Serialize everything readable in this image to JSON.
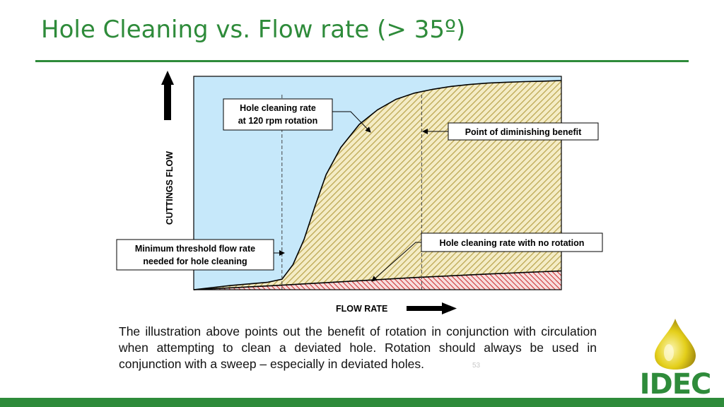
{
  "slide": {
    "title": "Hole Cleaning vs. Flow rate (> 35º)",
    "caption": "The illustration above points out the benefit of rotation in conjunction with circulation when attempting to clean a deviated hole. Rotation should always be used in conjunction with a sweep – especially in deviated holes.",
    "page_number": "53",
    "logo_text": "IDEC"
  },
  "chart_data": {
    "type": "area",
    "title": "",
    "xlabel": "FLOW RATE",
    "ylabel": "CUTTINGS FLOW",
    "xlim": [
      0,
      100
    ],
    "ylim": [
      0,
      100
    ],
    "ticks": "none",
    "grid": false,
    "colors": {
      "plot_background": "#c6e8fa",
      "rotation_fill_hatch": "#b8a24a",
      "rotation_fill_base": "#f4ecc6",
      "no_rotation_fill_hatch": "#cc2b2b",
      "axis_arrow": "#000000"
    },
    "series": [
      {
        "name": "Hole cleaning rate at 120 rpm rotation",
        "x": [
          0,
          10,
          20,
          24,
          27,
          30,
          33,
          36,
          40,
          45,
          50,
          55,
          60,
          65,
          70,
          75,
          80,
          85,
          90,
          95,
          100
        ],
        "y": [
          0,
          2,
          3.5,
          5,
          12,
          24,
          40,
          55,
          68,
          79,
          86,
          91,
          94,
          95.8,
          97.2,
          98.1,
          98.8,
          99.2,
          99.5,
          99.7,
          100
        ]
      },
      {
        "name": "Hole cleaning rate with no rotation",
        "x": [
          0,
          20,
          40,
          60,
          80,
          100
        ],
        "y": [
          0,
          1.8,
          3.8,
          5.8,
          7.5,
          9
        ]
      }
    ],
    "reference_lines": [
      {
        "x": 24,
        "style": "dashed"
      },
      {
        "x": 62,
        "style": "dashed"
      }
    ],
    "annotations": [
      "Hole cleaning rate\nat 120 rpm rotation",
      "Point of diminishing benefit",
      "Hole cleaning rate with no rotation",
      "Minimum threshold flow rate\nneeded for hole cleaning"
    ]
  }
}
